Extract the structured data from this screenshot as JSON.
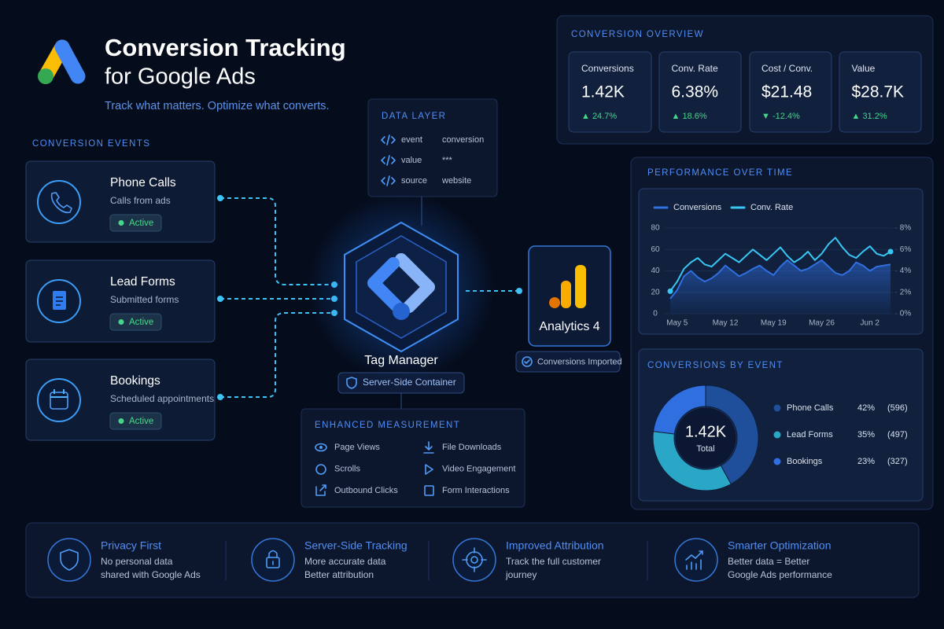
{
  "header": {
    "title_line1": "Conversion Tracking",
    "title_line2": "for Google Ads",
    "tagline": "Track what matters. Optimize what converts."
  },
  "events": {
    "heading": "CONVERSION EVENTS",
    "items": [
      {
        "name": "Phone Calls",
        "description": "Calls from ads",
        "status": "Active"
      },
      {
        "name": "Lead Forms",
        "description": "Submitted forms",
        "status": "Active"
      },
      {
        "name": "Bookings",
        "description": "Scheduled appointments",
        "status": "Active"
      }
    ]
  },
  "data_layer": {
    "heading": "DATA LAYER",
    "rows": [
      {
        "key": "event",
        "value": "conversion"
      },
      {
        "key": "value",
        "value": "***"
      },
      {
        "key": "source",
        "value": "website"
      }
    ]
  },
  "tag_manager": {
    "label": "Tag Manager",
    "badge": "Server-Side Container"
  },
  "analytics": {
    "label": "Analytics 4",
    "badge": "Conversions Imported"
  },
  "enhanced_measurement": {
    "heading": "ENHANCED MEASUREMENT",
    "items": [
      "Page Views",
      "File Downloads",
      "Scrolls",
      "Video Engagement",
      "Outbound Clicks",
      "Form Interactions"
    ]
  },
  "overview": {
    "heading": "CONVERSION OVERVIEW",
    "kpis": [
      {
        "label": "Conversions",
        "value": "1.42K",
        "change": "▲ 24.7%"
      },
      {
        "label": "Conv. Rate",
        "value": "6.38%",
        "change": "▲ 18.6%"
      },
      {
        "label": "Cost / Conv.",
        "value": "$21.48",
        "change": "▼ -12.4%"
      },
      {
        "label": "Value",
        "value": "$28.7K",
        "change": "▲ 31.2%"
      }
    ]
  },
  "chart_data": [
    {
      "type": "line",
      "title": "PERFORMANCE OVER TIME",
      "categories": [
        null,
        "May 5",
        null,
        null,
        null,
        null,
        null,
        null,
        "May 12",
        null,
        null,
        null,
        null,
        null,
        null,
        "May 19",
        null,
        null,
        null,
        null,
        null,
        null,
        "May 26",
        null,
        null,
        null,
        null,
        null,
        null,
        "Jun 2",
        null,
        null,
        null
      ],
      "series": [
        {
          "name": "Conversions",
          "color": "#2f6fe0",
          "values": [
            14,
            22,
            35,
            40,
            34,
            30,
            33,
            38,
            45,
            40,
            35,
            38,
            42,
            45,
            40,
            36,
            44,
            50,
            45,
            40,
            42,
            46,
            50,
            44,
            38,
            36,
            40,
            48,
            45,
            40,
            44,
            45,
            46
          ]
        },
        {
          "name": "Conv. Rate",
          "color": "#38c6f4",
          "axis": "y2",
          "values": [
            2.1,
            3.0,
            4.2,
            4.8,
            5.2,
            4.6,
            4.4,
            5.0,
            5.6,
            5.2,
            4.8,
            5.4,
            6.0,
            5.5,
            5.0,
            5.6,
            6.2,
            5.4,
            4.8,
            5.2,
            5.8,
            5.0,
            5.6,
            6.5,
            7.1,
            6.2,
            5.5,
            5.2,
            5.8,
            6.3,
            5.6,
            5.4,
            5.8
          ]
        }
      ],
      "ylim": [
        0,
        80
      ],
      "yticks": [
        0,
        20,
        40,
        60,
        80
      ],
      "y2lim": [
        0,
        8
      ],
      "y2ticks": [
        {
          "value": 0,
          "label": "0%"
        },
        {
          "value": 2,
          "label": "2%"
        },
        {
          "value": 4,
          "label": "4%"
        },
        {
          "value": 6,
          "label": "6%"
        },
        {
          "value": 8,
          "label": "8%"
        }
      ],
      "grid": true,
      "legend": "top-left"
    },
    {
      "type": "pie",
      "donut": true,
      "title": "CONVERSIONS BY EVENT",
      "center_value": "1.42K",
      "center_label": "Total",
      "categories": [
        "Phone Calls",
        "Lead Forms",
        "Bookings"
      ],
      "values": [
        42,
        35,
        23
      ],
      "value_labels": [
        "42%",
        "35%",
        "23%"
      ],
      "counts": [
        "(596)",
        "(497)",
        "(327)"
      ],
      "colors": [
        "#1f4f9a",
        "#2aa6c6",
        "#2f6fe0"
      ]
    }
  ],
  "features": [
    {
      "title": "Privacy First",
      "lines": [
        "No personal data",
        "shared with Google Ads"
      ]
    },
    {
      "title": "Server-Side Tracking",
      "lines": [
        "More accurate data",
        "Better attribution"
      ]
    },
    {
      "title": "Improved Attribution",
      "lines": [
        "Track the full customer",
        "journey"
      ]
    },
    {
      "title": "Smarter Optimization",
      "lines": [
        "Better data = Better",
        "Google Ads performance"
      ]
    }
  ]
}
